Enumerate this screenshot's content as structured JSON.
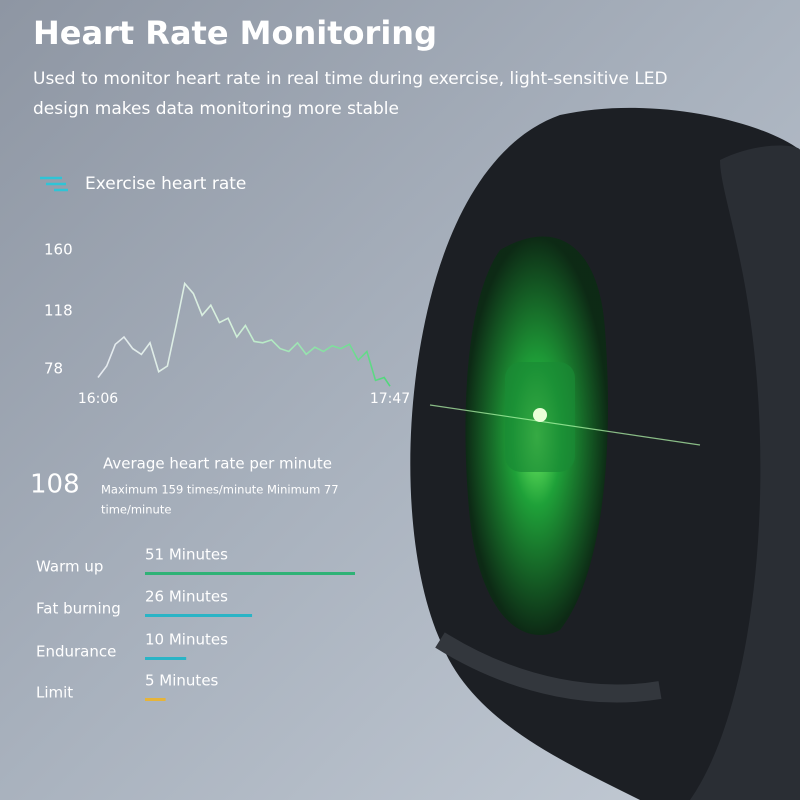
{
  "header": {
    "title": "Heart Rate Monitoring",
    "subtitle_lines": [
      "Used to monitor heart rate in real time during exercise, light-sensitive LED",
      "design makes data monitoring more stable"
    ]
  },
  "chart_data": [
    {
      "type": "line",
      "x": [
        0,
        3,
        6,
        9,
        12,
        15,
        18,
        21,
        24,
        27,
        30,
        33,
        36,
        39,
        42,
        45,
        48,
        51,
        54,
        57,
        60,
        63,
        66,
        69,
        72,
        75,
        78,
        81,
        84,
        87,
        90,
        93,
        96,
        99,
        101
      ],
      "series": [
        {
          "name": "Exercise heart rate",
          "color": "#4fd67a",
          "values": [
            72,
            80,
            95,
            100,
            92,
            88,
            96,
            76,
            80,
            108,
            137,
            130,
            115,
            122,
            110,
            113,
            100,
            108,
            97,
            96,
            98,
            92,
            90,
            96,
            88,
            93,
            90,
            94,
            92,
            95,
            84,
            90,
            70,
            72,
            66
          ]
        }
      ],
      "xlim": [
        0,
        101
      ],
      "xticks": [
        {
          "value": 0,
          "label": "16:06"
        },
        {
          "value": 101,
          "label": "17:47"
        }
      ],
      "ylim": [
        62,
        165
      ],
      "yticks": [
        78,
        118,
        160
      ]
    },
    {
      "type": "hbar",
      "categories": [
        "Warm up",
        "Fat burning",
        "Endurance",
        "Limit"
      ],
      "values": [
        51,
        26,
        10,
        5
      ],
      "value_labels": [
        "51 Minutes",
        "26 Minutes",
        "10 Minutes",
        "5 Minutes"
      ],
      "colors": [
        "#2fb276",
        "#2ab4c6",
        "#2ab4c6",
        "#e6b43a"
      ],
      "xlim": [
        0,
        51
      ]
    }
  ],
  "summary": {
    "value": "108",
    "label": "Average heart rate per minute",
    "detail_lines": [
      "Maximum 159 times/minute Minimum 77",
      "time/minute"
    ]
  }
}
